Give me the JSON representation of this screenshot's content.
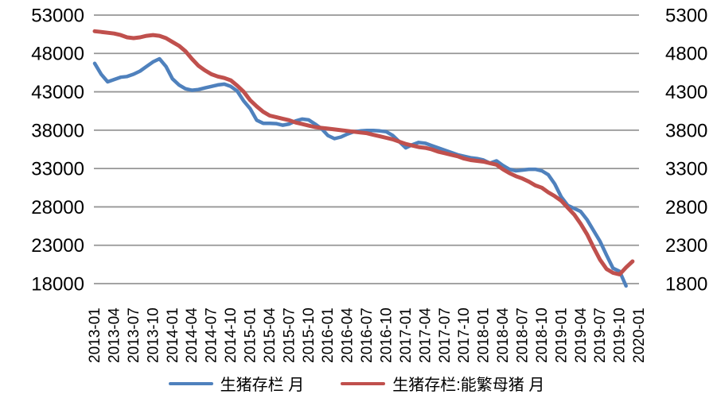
{
  "chart_data": {
    "type": "line",
    "title": "",
    "grid": true,
    "legend_position": "bottom",
    "x_start": "2013-01",
    "x_tick_labels": [
      "2013-01",
      "2013-04",
      "2013-07",
      "2013-10",
      "2014-01",
      "2014-04",
      "2014-07",
      "2014-10",
      "2015-01",
      "2015-04",
      "2015-07",
      "2015-10",
      "2016-01",
      "2016-04",
      "2016-07",
      "2016-10",
      "2017-01",
      "2017-04",
      "2017-07",
      "2017-10",
      "2018-01",
      "2018-04",
      "2018-07",
      "2018-10",
      "2019-01",
      "2019-04",
      "2019-07",
      "2019-10",
      "2020-01"
    ],
    "y_axis_left": {
      "min": 18000,
      "max": 53000,
      "ticks": [
        "53000",
        "48000",
        "43000",
        "38000",
        "33000",
        "28000",
        "23000",
        "18000"
      ]
    },
    "y_axis_right": {
      "min": 1800,
      "max": 5300,
      "ticks": [
        "5300",
        "4800",
        "4300",
        "3800",
        "3300",
        "2800",
        "2300",
        "1800"
      ]
    },
    "series": [
      {
        "name": "生猪存栏 月",
        "axis": "left",
        "color": "#4F81BD",
        "start_month": "2013-01",
        "end_month": "2019-11",
        "values": [
          46700,
          45300,
          44300,
          44600,
          44900,
          45000,
          45300,
          45700,
          46300,
          46900,
          47300,
          46300,
          44700,
          43900,
          43400,
          43200,
          43300,
          43500,
          43700,
          43900,
          44000,
          43700,
          43100,
          41800,
          40800,
          39300,
          38900,
          38900,
          38850,
          38650,
          38800,
          39200,
          39450,
          39350,
          38800,
          38200,
          37300,
          36900,
          37100,
          37500,
          37800,
          37900,
          37950,
          37950,
          37900,
          37800,
          37300,
          36500,
          35700,
          36100,
          36400,
          36300,
          36000,
          35700,
          35400,
          35100,
          34800,
          34600,
          34400,
          34300,
          34100,
          33700,
          34000,
          33400,
          32900,
          32700,
          32800,
          32900,
          32900,
          32700,
          32200,
          31000,
          29300,
          28200,
          27800,
          27400,
          26300,
          24900,
          23500,
          21700,
          20000,
          19600,
          17700
        ]
      },
      {
        "name": "生猪存栏:能繁母猪 月",
        "axis": "right",
        "color": "#C0504D",
        "start_month": "2013-01",
        "end_month": "2019-12",
        "values": [
          5090,
          5080,
          5070,
          5060,
          5040,
          5010,
          5000,
          5010,
          5030,
          5040,
          5030,
          5000,
          4950,
          4900,
          4830,
          4730,
          4640,
          4580,
          4530,
          4500,
          4480,
          4450,
          4380,
          4300,
          4190,
          4110,
          4040,
          3990,
          3970,
          3950,
          3930,
          3900,
          3880,
          3860,
          3840,
          3830,
          3820,
          3810,
          3800,
          3790,
          3780,
          3770,
          3760,
          3740,
          3720,
          3700,
          3680,
          3650,
          3620,
          3600,
          3580,
          3570,
          3550,
          3520,
          3500,
          3480,
          3460,
          3430,
          3410,
          3400,
          3390,
          3370,
          3350,
          3290,
          3240,
          3200,
          3170,
          3130,
          3080,
          3050,
          2990,
          2940,
          2880,
          2790,
          2700,
          2580,
          2440,
          2270,
          2110,
          1990,
          1940,
          1920,
          2010,
          2090
        ]
      }
    ]
  },
  "legend": {
    "items": [
      {
        "label": "生猪存栏 月",
        "color": "#4F81BD"
      },
      {
        "label": "生猪存栏:能繁母猪 月",
        "color": "#C0504D"
      }
    ]
  },
  "colors": {
    "background": "#FFFFFF",
    "gridline": "#969696",
    "axis_text": "#000000",
    "series_blue": "#4F81BD",
    "series_red": "#C0504D"
  }
}
